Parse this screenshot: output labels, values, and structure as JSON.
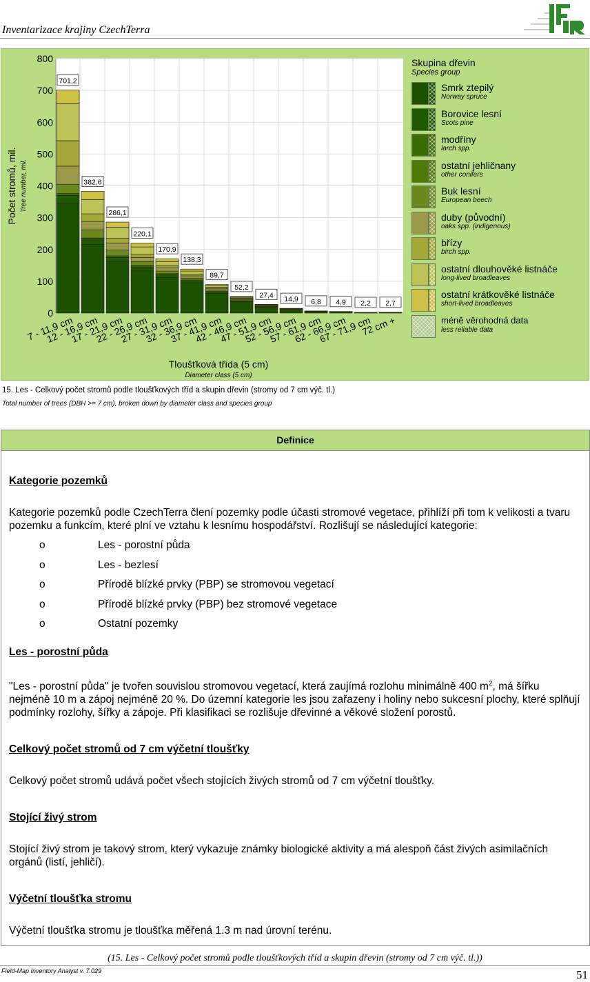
{
  "header": {
    "title": "Inventarizace krajiny CzechTerra",
    "logo_text": "IFER"
  },
  "chart_data": {
    "type": "bar",
    "stacked": true,
    "ylabel": "Počet stromů, mil.",
    "ylabel_en": "Tree number, mil.",
    "xlabel": "Tloušťková třída (5 cm)",
    "xlabel_en": "Diameter class (5 cm)",
    "ylim": [
      0,
      800
    ],
    "yticks": [
      0,
      100,
      200,
      300,
      400,
      500,
      600,
      700,
      800
    ],
    "grid": true,
    "categories": [
      "7 - 11,9 cm",
      "12 - 16,9 cm",
      "17 - 21,9 cm",
      "22 - 26,9 cm",
      "27 - 31,9 cm",
      "32 - 36,9 cm",
      "37 - 41,9 cm",
      "42 - 46,9 cm",
      "47 - 51,9 cm",
      "52 - 56,9 cm",
      "57 - 61,9 cm",
      "62 - 66,9 cm",
      "67 - 71,9 cm",
      "72 cm +"
    ],
    "totals": [
      "701,2",
      "382,6",
      "286,1",
      "220,1",
      "170,9",
      "138,3",
      "89,7",
      "52,2",
      "27,4",
      "14,9",
      "6,8",
      "4,9",
      "2,2",
      "2,7"
    ],
    "series": [
      {
        "name": "Smrk ztepilý",
        "name_en": "Norway spruce",
        "color": "#1a5200",
        "values": [
          345,
          216,
          163,
          135,
          112,
          95,
          62,
          36,
          19,
          10,
          4.5,
          3.2,
          1.4,
          1.6
        ]
      },
      {
        "name": "Borovice lesní",
        "name_en": "Scots pine",
        "color": "#1f5a02",
        "values": [
          25,
          14,
          12,
          10,
          8,
          6,
          4,
          2,
          1,
          0.5,
          0,
          0,
          0,
          0
        ]
      },
      {
        "name": "modříny",
        "name_en": "larch spp.",
        "color": "#3a6e05",
        "values": [
          6,
          4,
          5,
          5,
          4,
          3,
          2,
          1,
          1,
          0,
          0,
          0,
          0,
          0
        ]
      },
      {
        "name": "ostatní jehličnany",
        "name_en": "other conifers",
        "color": "#4e7a08",
        "values": [
          0,
          2,
          0,
          0,
          0,
          0,
          0,
          0,
          0,
          0,
          0,
          0,
          0,
          0
        ]
      },
      {
        "name": "Buk lesní",
        "name_en": "European beech",
        "color": "#6b8a1e",
        "values": [
          29,
          26,
          18,
          12,
          8,
          6,
          5,
          4,
          2.5,
          2,
          1.2,
          1,
          0.5,
          0.7
        ]
      },
      {
        "name": "duby (původní)",
        "name_en": "oaks spp. (indigenous)",
        "color": "#9a9a4a",
        "values": [
          57,
          26,
          22,
          13,
          10,
          7,
          5,
          3,
          2,
          1.5,
          0.6,
          0.4,
          0.3,
          0.4
        ]
      },
      {
        "name": "břízy",
        "name_en": "birch spp.",
        "color": "#a3a836",
        "values": [
          80,
          24,
          15,
          10,
          7,
          5,
          3,
          2,
          0.5,
          0,
          0,
          0,
          0,
          0
        ]
      },
      {
        "name": "ostatní dlouhověké listnáče",
        "name_en": "long-lived broadleaves",
        "color": "#bcc256",
        "values": [
          116,
          45,
          35,
          23,
          13,
          10,
          6,
          3,
          1,
          0.9,
          0.5,
          0.3,
          0,
          0
        ]
      },
      {
        "name": "ostatní krátkověké listnáče",
        "name_en": "short-lived broadleaves",
        "color": "#cfc046",
        "values": [
          43.2,
          25.6,
          16.1,
          12.1,
          8.9,
          6.3,
          2.7,
          1.2,
          0.4,
          0,
          0,
          0,
          0,
          0
        ]
      }
    ],
    "legend": {
      "title": "Skupina dřevin",
      "title_en": "Species group",
      "less_reliable": "méně věrohodná data",
      "less_reliable_en": "less reliable data",
      "position": "right"
    }
  },
  "caption": {
    "cz": "15. Les - Celkový počet stromů podle tloušťkových tříd a skupin dřevin (stromy od 7 cm výč. tl.)",
    "en": "Total number of trees (DBH >= 7 cm), broken down by diameter class and species group"
  },
  "definitions": {
    "title": "Definice",
    "s1_h": "Kategorie pozemků",
    "s1_p": "Kategorie pozemků podle CzechTerra člení pozemky podle účasti stromové vegetace, přihlíží při tom k velikosti a tvaru pozemku a funkcím, které plní ve vztahu k lesnímu hospodářství. Rozlišují se následující kategorie:",
    "bullet": "o",
    "items": [
      "Les - porostní půda",
      "Les - bezlesí",
      "Přírodě blízké prvky (PBP) se stromovou vegetací",
      "Přírodě blízké prvky (PBP) bez stromové vegetace",
      "Ostatní pozemky"
    ],
    "s2_h": "Les - porostní půda",
    "s2_p1": "\"Les - porostní půda\" je tvořen souvislou stromovou vegetací, která zaujímá rozlohu minimálně 400 m",
    "s2_sup": "2",
    "s2_p2": ", má šířku nejméně 10 m a zápoj nejméně 20 %. Do územní kategorie les jsou zařazeny i holiny nebo sukcesní plochy, které splňují podmínky rozlohy, šířky a zápoje. Při klasifikaci se rozlišuje dřevinné a věkové složení porostů.",
    "s3_h": "Celkový počet stromů od 7 cm výčetní tloušťky",
    "s3_p": "Celkový počet stromů udává počet všech stojících živých stromů od 7 cm výčetní tloušťky.",
    "s4_h": "Stojící živý strom",
    "s4_p": "Stojící živý strom je takový strom, který vykazuje známky biologické aktivity a má alespoň část živých asimilačních orgánů (listí, jehličí).",
    "s5_h": "Výčetní tloušťka stromu",
    "s5_p": "Výčetní tloušťka stromu je tloušťka měřená 1.3 m nad úrovní terénu."
  },
  "footer": {
    "caption": "(15. Les - Celkový počet stromů podle tloušťkových tříd a skupin dřevin (stromy od 7 cm výč. tl.))",
    "software": "Field-Map Inventory Analyst v. 7.029",
    "page": "51"
  }
}
